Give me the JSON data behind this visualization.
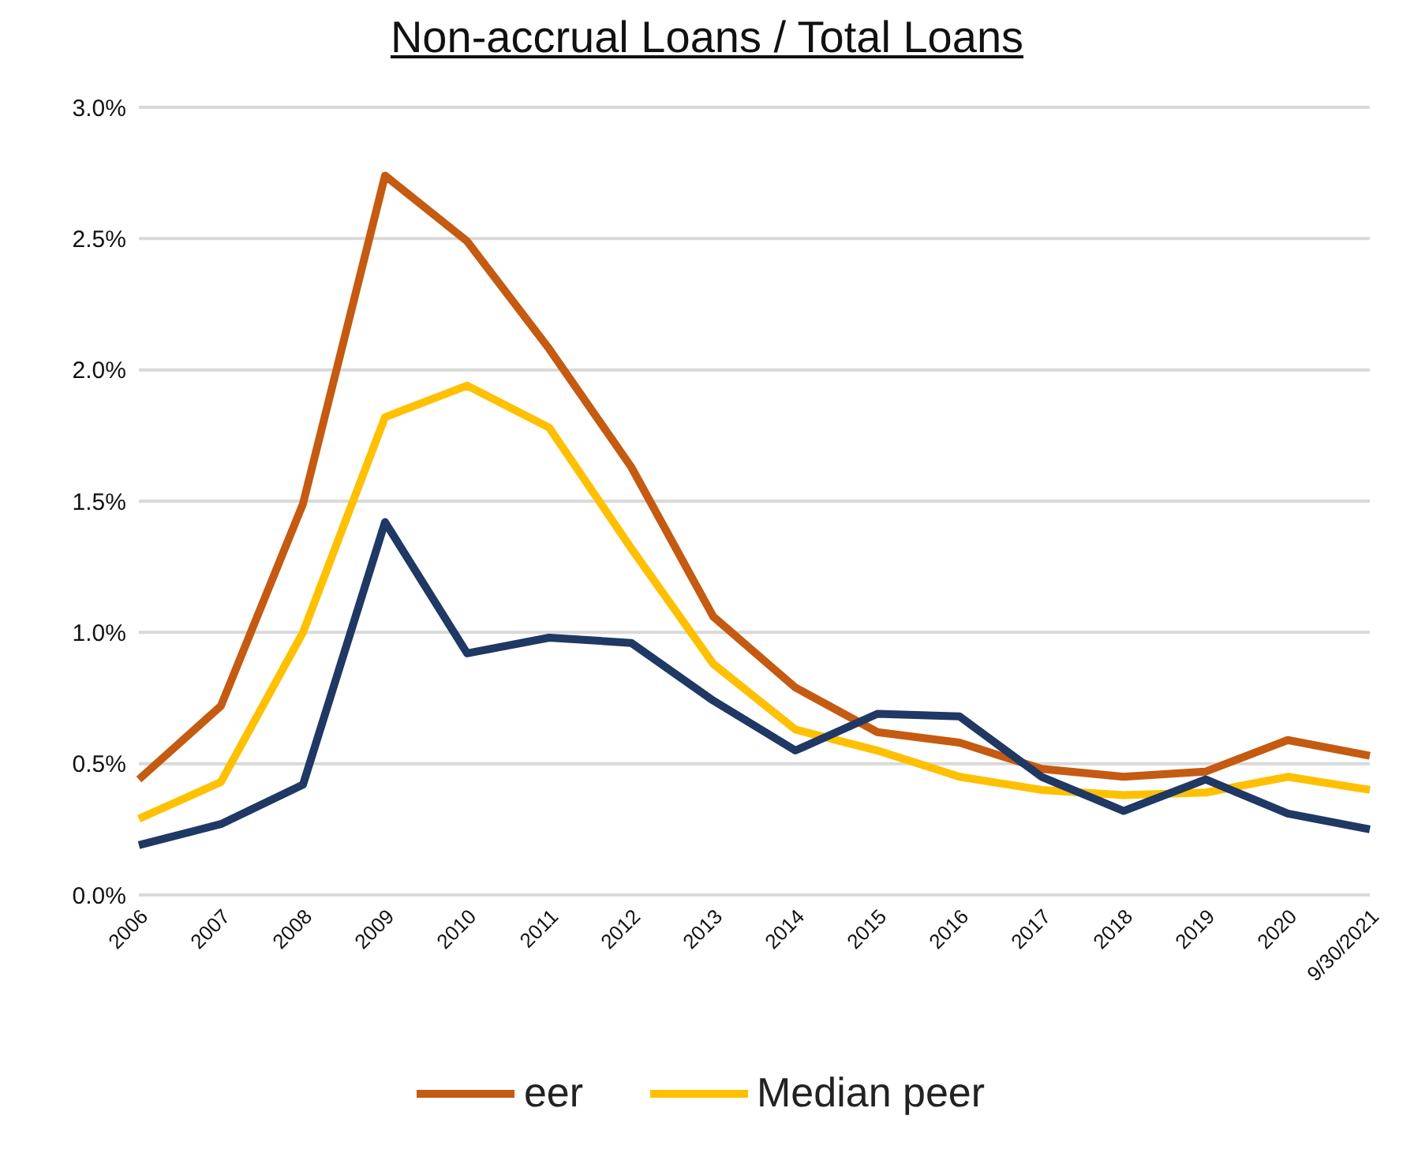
{
  "chart_data": {
    "type": "line",
    "title": "Non-accrual Loans / Total Loans",
    "categories": [
      "2006",
      "2007",
      "2008",
      "2009",
      "2010",
      "2011",
      "2012",
      "2013",
      "2014",
      "2015",
      "2016",
      "2017",
      "2018",
      "2019",
      "2020",
      "9/30/2021"
    ],
    "series": [
      {
        "name": "eer",
        "color": "#c55a11",
        "values": [
          0.44,
          0.72,
          1.49,
          2.74,
          2.49,
          2.08,
          1.63,
          1.06,
          0.79,
          0.62,
          0.58,
          0.48,
          0.45,
          0.47,
          0.59,
          0.53
        ]
      },
      {
        "name": "Median peer",
        "color": "#ffc000",
        "values": [
          0.29,
          0.43,
          1.0,
          1.82,
          1.94,
          1.78,
          1.32,
          0.88,
          0.63,
          0.55,
          0.45,
          0.4,
          0.38,
          0.39,
          0.45,
          0.4
        ]
      },
      {
        "color": "#1f3864",
        "values": [
          0.19,
          0.27,
          0.42,
          1.42,
          0.92,
          0.98,
          0.96,
          0.74,
          0.55,
          0.69,
          0.68,
          0.45,
          0.32,
          0.44,
          0.31,
          0.25
        ]
      }
    ],
    "ylim": [
      0,
      3
    ],
    "yticks": [
      {
        "value": 0,
        "label": "0.0%"
      },
      {
        "value": 0.5,
        "label": "0.5%"
      },
      {
        "value": 1,
        "label": "1.0%"
      },
      {
        "value": 1.5,
        "label": "1.5%"
      },
      {
        "value": 2,
        "label": "2.0%"
      },
      {
        "value": 2.5,
        "label": "2.5%"
      },
      {
        "value": 3,
        "label": "3.0%"
      }
    ],
    "grid": "y",
    "legend": "bottom",
    "marker": "none",
    "line_style": "solid"
  }
}
